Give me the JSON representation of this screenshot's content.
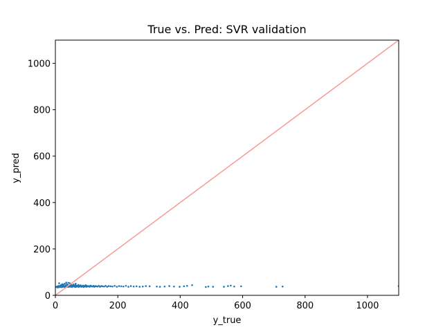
{
  "chart_data": {
    "type": "scatter",
    "title": "True vs. Pred: SVR validation",
    "xlabel": "y_true",
    "ylabel": "y_pred",
    "xlim": [
      0,
      1100
    ],
    "ylim": [
      0,
      1100
    ],
    "xticks": [
      0,
      200,
      400,
      600,
      800,
      1000
    ],
    "yticks": [
      0,
      200,
      400,
      600,
      800,
      1000
    ],
    "grid": false,
    "series": [
      {
        "kind": "points",
        "color": "#1f77b4",
        "points": [
          [
            3,
            36
          ],
          [
            5,
            38
          ],
          [
            7,
            34
          ],
          [
            9,
            40
          ],
          [
            10,
            37
          ],
          [
            12,
            35
          ],
          [
            14,
            41
          ],
          [
            15,
            38
          ],
          [
            17,
            36
          ],
          [
            18,
            44
          ],
          [
            20,
            39
          ],
          [
            21,
            35
          ],
          [
            23,
            42
          ],
          [
            24,
            37
          ],
          [
            26,
            46
          ],
          [
            27,
            40
          ],
          [
            29,
            36
          ],
          [
            30,
            50
          ],
          [
            31,
            38
          ],
          [
            33,
            43
          ],
          [
            34,
            35
          ],
          [
            36,
            41
          ],
          [
            37,
            48
          ],
          [
            38,
            37
          ],
          [
            40,
            39
          ],
          [
            41,
            44
          ],
          [
            43,
            36
          ],
          [
            44,
            40
          ],
          [
            46,
            52
          ],
          [
            47,
            38
          ],
          [
            48,
            42
          ],
          [
            50,
            37
          ],
          [
            51,
            45
          ],
          [
            53,
            39
          ],
          [
            54,
            36
          ],
          [
            56,
            43
          ],
          [
            57,
            40
          ],
          [
            58,
            47
          ],
          [
            60,
            38
          ],
          [
            61,
            41
          ],
          [
            63,
            36
          ],
          [
            64,
            44
          ],
          [
            66,
            39
          ],
          [
            67,
            37
          ],
          [
            69,
            42
          ],
          [
            70,
            40
          ],
          [
            72,
            38
          ],
          [
            74,
            45
          ],
          [
            75,
            36
          ],
          [
            77,
            41
          ],
          [
            79,
            39
          ],
          [
            81,
            43
          ],
          [
            83,
            37
          ],
          [
            85,
            40
          ],
          [
            87,
            38
          ],
          [
            89,
            42
          ],
          [
            91,
            36
          ],
          [
            93,
            40
          ],
          [
            95,
            39
          ],
          [
            97,
            44
          ],
          [
            99,
            37
          ],
          [
            101,
            41
          ],
          [
            104,
            38
          ],
          [
            107,
            40
          ],
          [
            110,
            37
          ],
          [
            113,
            42
          ],
          [
            116,
            39
          ],
          [
            119,
            38
          ],
          [
            122,
            41
          ],
          [
            125,
            37
          ],
          [
            128,
            40
          ],
          [
            131,
            39
          ],
          [
            135,
            38
          ],
          [
            139,
            41
          ],
          [
            143,
            37
          ],
          [
            147,
            40
          ],
          [
            151,
            39
          ],
          [
            156,
            38
          ],
          [
            161,
            41
          ],
          [
            166,
            37
          ],
          [
            171,
            40
          ],
          [
            177,
            39
          ],
          [
            183,
            38
          ],
          [
            190,
            41
          ],
          [
            197,
            37
          ],
          [
            204,
            40
          ],
          [
            211,
            39
          ],
          [
            218,
            38
          ],
          [
            226,
            41
          ],
          [
            234,
            37
          ],
          [
            242,
            40
          ],
          [
            251,
            38
          ],
          [
            260,
            39
          ],
          [
            270,
            37
          ],
          [
            280,
            38
          ],
          [
            290,
            40
          ],
          [
            302,
            39
          ],
          [
            325,
            38
          ],
          [
            335,
            37
          ],
          [
            350,
            38
          ],
          [
            365,
            40
          ],
          [
            380,
            38
          ],
          [
            398,
            37
          ],
          [
            412,
            39
          ],
          [
            422,
            41
          ],
          [
            438,
            44
          ],
          [
            482,
            36
          ],
          [
            490,
            38
          ],
          [
            505,
            37
          ],
          [
            540,
            37
          ],
          [
            553,
            40
          ],
          [
            562,
            42
          ],
          [
            573,
            38
          ],
          [
            595,
            39
          ],
          [
            708,
            37
          ],
          [
            728,
            38
          ],
          [
            1100,
            40
          ],
          [
            12,
            52
          ],
          [
            35,
            55
          ],
          [
            42,
            54
          ],
          [
            65,
            50
          ],
          [
            22,
            48
          ]
        ]
      },
      {
        "kind": "line",
        "color": "#f4a09c",
        "x": [
          0,
          1100
        ],
        "y": [
          0,
          1100
        ]
      }
    ]
  }
}
